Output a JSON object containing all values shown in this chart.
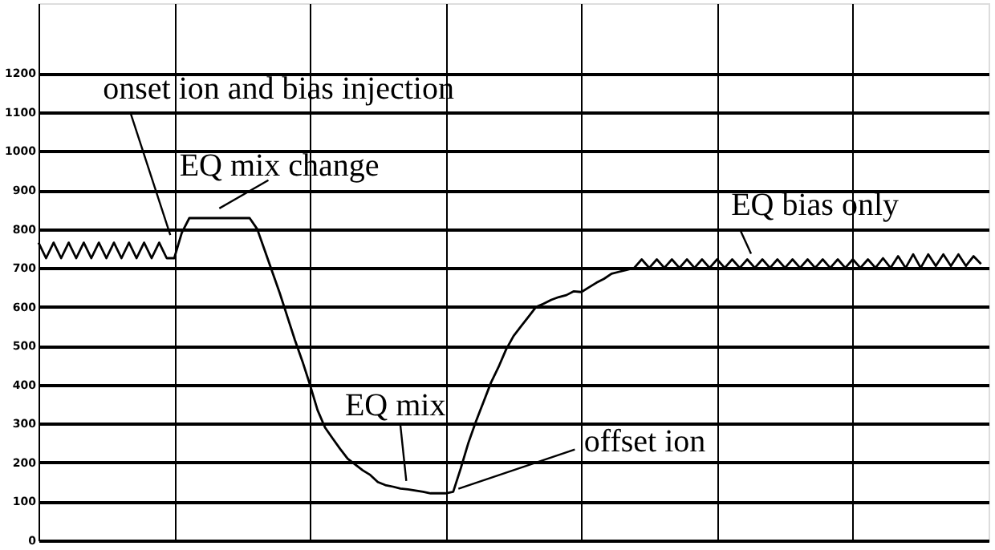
{
  "chart_data": {
    "type": "line",
    "categories": [
      null,
      null,
      null,
      null,
      null,
      null,
      null,
      null,
      null,
      null,
      null,
      null,
      null,
      null,
      null,
      null,
      null,
      null,
      null,
      null,
      null,
      null,
      null,
      null,
      null,
      null,
      null,
      null,
      null,
      null,
      null,
      null,
      null,
      null,
      null,
      null,
      null,
      null,
      null,
      null,
      null,
      null,
      null,
      null,
      null,
      null,
      null,
      null,
      null,
      null,
      null,
      null,
      null,
      null,
      null,
      null,
      null,
      null,
      null,
      null,
      null,
      null,
      null,
      null,
      null,
      null,
      null,
      null,
      null,
      null,
      null,
      null,
      null,
      null,
      null,
      null,
      null,
      null,
      null,
      null,
      null,
      null,
      null,
      null,
      null,
      null,
      null,
      null,
      null,
      null,
      null,
      null,
      null,
      null,
      null,
      null,
      null,
      null,
      null,
      null,
      null,
      null,
      null,
      null,
      null,
      null,
      null,
      null,
      null,
      null,
      null,
      null,
      null,
      null,
      null,
      null,
      null,
      null,
      null,
      null,
      null,
      null,
      null,
      null,
      null,
      null
    ],
    "values": [
      765,
      725,
      765,
      725,
      765,
      725,
      765,
      725,
      765,
      725,
      765,
      725,
      765,
      725,
      765,
      725,
      765,
      725,
      725,
      790,
      828,
      828,
      828,
      828,
      828,
      828,
      828,
      828,
      828,
      800,
      745,
      690,
      635,
      575,
      515,
      460,
      400,
      335,
      290,
      262,
      235,
      210,
      195,
      180,
      168,
      150,
      142,
      138,
      133,
      131,
      128,
      125,
      121,
      121,
      121,
      125,
      185,
      250,
      305,
      355,
      405,
      445,
      490,
      525,
      550,
      575,
      600,
      608,
      618,
      625,
      630,
      640,
      638,
      650,
      662,
      672,
      685,
      690,
      695,
      700,
      722,
      700,
      722,
      700,
      722,
      700,
      722,
      700,
      722,
      700,
      722,
      700,
      722,
      700,
      722,
      700,
      722,
      700,
      722,
      700,
      722,
      700,
      722,
      700,
      722,
      700,
      722,
      700,
      722,
      700,
      722,
      700,
      725,
      700,
      730,
      700,
      735,
      700,
      735,
      705,
      735,
      705,
      735,
      705,
      730,
      710
    ],
    "color": "#000000",
    "line_style": "solid",
    "marker": "none",
    "ylim": [
      0,
      1380
    ],
    "yticks": [
      0,
      100,
      200,
      300,
      400,
      500,
      600,
      700,
      800,
      900,
      1000,
      1100,
      1200
    ],
    "grid": true,
    "annotations": [
      "onset ion and bias injection",
      "EQ mix change",
      "EQ mix",
      "offset ion",
      "EQ bias only"
    ]
  }
}
